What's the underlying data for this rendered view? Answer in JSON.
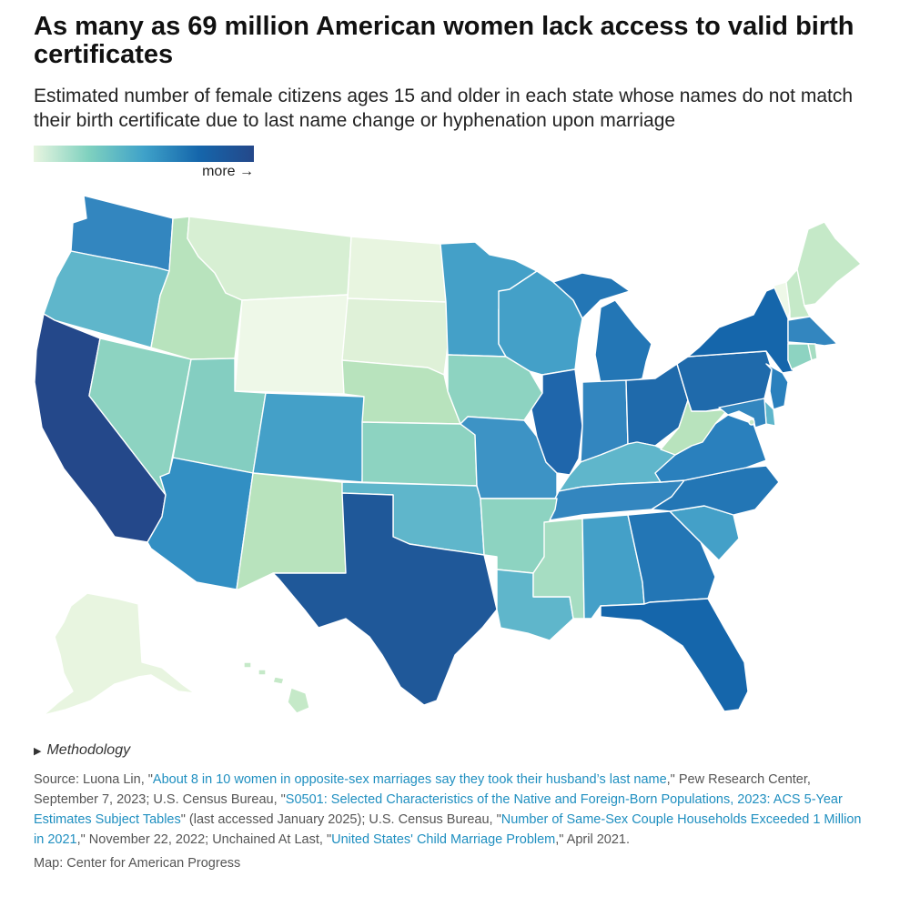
{
  "title": "As many as 69 million American women lack access to valid birth certificates",
  "subtitle": "Estimated number of female citizens ages 15 and older in each state whose names do not match their birth certificate due to last name change or hyphenation upon marriage",
  "legend": {
    "more_label": "more →",
    "colors": [
      "#e8f5e0",
      "#7fd1bf",
      "#3fa2c9",
      "#1566ab",
      "#24488a"
    ]
  },
  "methodology": {
    "label": "Methodology"
  },
  "source": {
    "p1": "Source: Luona Lin, \"",
    "link1": "About 8 in 10 women in opposite-sex marriages say they took their husband’s last name",
    "p2": ",\" Pew Research Center, September 7, 2023; U.S. Census Bureau, \"",
    "link2": "S0501: Selected Characteristics of the Native and Foreign-Born Populations, 2023: ACS 5-Year Estimates Subject Tables",
    "p3": "\" (last accessed January 2025); U.S. Census Bureau, \"",
    "link3": "Number of Same-Sex Couple Households Exceeded 1 Million in 2021",
    "p4": ",\" November 22, 2022; Unchained At Last, \"",
    "link4": "United States' Child Marriage Problem",
    "p5": ",\" April 2021."
  },
  "credit": "Map: Center for American Progress",
  "state_colors": {
    "WA": "#3386bf",
    "OR": "#5fb6cb",
    "CA": "#24488a",
    "NV": "#8dd3c1",
    "ID": "#b8e3bd",
    "MT": "#d7efd3",
    "WY": "#eef8e8",
    "UT": "#84cec1",
    "AZ": "#328fc3",
    "CO": "#44a0c8",
    "NM": "#b8e3bd",
    "ND": "#e8f5e0",
    "SD": "#dff1d8",
    "NE": "#b8e3bd",
    "KS": "#8dd3c1",
    "OK": "#5fb6cb",
    "TX": "#1f5899",
    "MN": "#44a0c8",
    "IA": "#8dd3c1",
    "MO": "#3d93c5",
    "AR": "#8dd3c1",
    "LA": "#5fb6cb",
    "WI": "#44a0c8",
    "IL": "#1f66ab",
    "MI": "#2376b5",
    "IN": "#3386bf",
    "OH": "#1f6aab",
    "KY": "#5fb6cb",
    "TN": "#3386bf",
    "MS": "#a6ddc2",
    "AL": "#44a0c8",
    "GA": "#2376b5",
    "FL": "#1566ab",
    "SC": "#44a0c8",
    "NC": "#2376b5",
    "VA": "#2a80bd",
    "WV": "#b8e3bd",
    "PA": "#1f6aab",
    "NY": "#1566ab",
    "VT": "#eef8e8",
    "NH": "#c5e9c8",
    "ME": "#c5e9c8",
    "MA": "#3386bf",
    "CT": "#8dd3c1",
    "RI": "#a6ddc2",
    "NJ": "#2a80bd",
    "DE": "#5fb6cb",
    "MD": "#3386bf",
    "DC": "#c5e9c8",
    "AK": "#e8f5e0",
    "HI": "#c5e9c8"
  }
}
